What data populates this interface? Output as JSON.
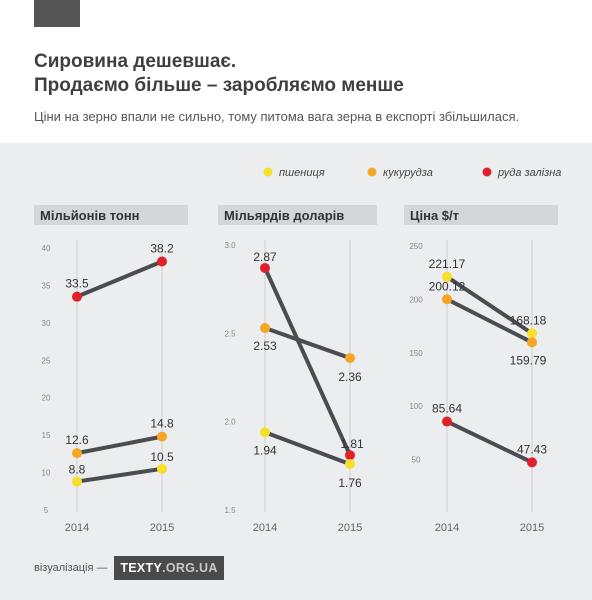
{
  "header": {
    "title_line1": "Сировина дешевшає.",
    "title_line2": "Продаємо більше – заробляємо менше",
    "subtitle": "Ціни на зерно впали не сильно, тому питома вага зерна в експорті збільшилася."
  },
  "footer": {
    "credit": "візуалізація —",
    "logo_main": "TEXTY",
    "logo_dim": ".ORG.UA"
  },
  "colors": {
    "line": "#4b4b52",
    "wheat": "#f7df2a",
    "corn": "#f5a623",
    "ore": "#e0202a"
  },
  "chart_data": {
    "type": "line",
    "legend": {
      "placement": "top-right",
      "entries": [
        {
          "key": "wheat",
          "label": "пшениця"
        },
        {
          "key": "corn",
          "label": "кукурудза"
        },
        {
          "key": "ore",
          "label": "руда залізна"
        }
      ]
    },
    "categories": [
      "2014",
      "2015"
    ],
    "panels": [
      {
        "title": "Мільйонів тонн",
        "ylim": [
          5,
          40
        ],
        "yticks": [
          "5",
          "10",
          "15",
          "20",
          "25",
          "30",
          "35",
          "40"
        ],
        "series": [
          {
            "key": "ore",
            "values": [
              33.5,
              38.2
            ],
            "labels": [
              "33.5",
              "38.2"
            ]
          },
          {
            "key": "corn",
            "values": [
              12.6,
              14.8
            ],
            "labels": [
              "12.6",
              "14.8"
            ]
          },
          {
            "key": "wheat",
            "values": [
              8.8,
              10.5
            ],
            "labels": [
              "8.8",
              "10.5"
            ]
          }
        ]
      },
      {
        "title": "Мільярдів доларів",
        "ylim": [
          1.5,
          3.0
        ],
        "yticks": [
          "1.5",
          "2.0",
          "2.5",
          "3.0"
        ],
        "series": [
          {
            "key": "ore",
            "values": [
              2.87,
              1.81
            ],
            "labels": [
              "2.87",
              "1.81"
            ]
          },
          {
            "key": "corn",
            "values": [
              2.53,
              2.36
            ],
            "labels": [
              "2.53",
              "2.36"
            ]
          },
          {
            "key": "wheat",
            "values": [
              1.94,
              1.76
            ],
            "labels": [
              "1.94",
              "1.76"
            ]
          }
        ]
      },
      {
        "title": "Ціна $/т",
        "ylim": [
          0,
          250
        ],
        "yticks": [
          "50",
          "100",
          "150",
          "200",
          "250"
        ],
        "series": [
          {
            "key": "wheat",
            "values": [
              221.17,
              168.18
            ],
            "labels": [
              "221.17",
              "168.18"
            ]
          },
          {
            "key": "corn",
            "values": [
              200.12,
              159.79
            ],
            "labels": [
              "200.12",
              "159.79"
            ]
          },
          {
            "key": "ore",
            "values": [
              85.64,
              47.43
            ],
            "labels": [
              "85.64",
              "47.43"
            ]
          }
        ]
      }
    ]
  }
}
